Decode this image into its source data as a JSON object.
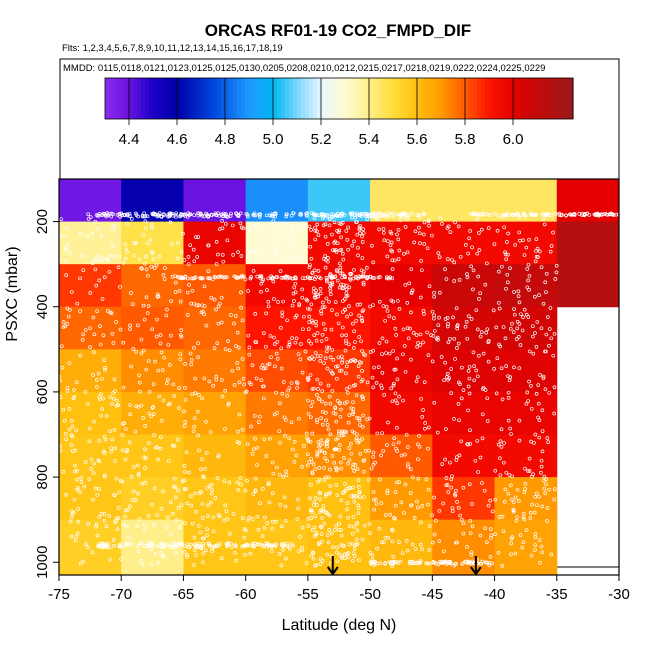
{
  "chart_data": {
    "type": "heatmap",
    "title": "ORCAS RF01-19 CO2_FMPD_DIF",
    "flights_text": "Flts: 1,2,3,4,5,6,7,8,9,10,11,12,13,14,15,16,17,18,19",
    "dates_text": "MMDD: 0115,0118,0121,0123,0125,0125,0130,0205,0208,0210,0212,0215,0217,0218,0219,0222,0224,0225,0229",
    "xlabel": "Latitude (deg N)",
    "ylabel": "PSXC (mbar)",
    "xlim": [
      -75,
      -30
    ],
    "ylim": [
      1030,
      100
    ],
    "x_ticks": [
      -75,
      -70,
      -65,
      -60,
      -55,
      -50,
      -45,
      -40,
      -35,
      -30
    ],
    "y_ticks": [
      200,
      400,
      600,
      800,
      1000
    ],
    "colorbar": {
      "min": 4.3,
      "max": 6.25,
      "ticks": [
        4.4,
        4.6,
        4.8,
        5.0,
        5.2,
        5.4,
        5.6,
        5.8,
        6.0
      ],
      "stops": [
        {
          "v": 4.3,
          "c": "#8b2cf0"
        },
        {
          "v": 4.4,
          "c": "#6a12e0"
        },
        {
          "v": 4.5,
          "c": "#1a00c8"
        },
        {
          "v": 4.6,
          "c": "#0000a8"
        },
        {
          "v": 4.75,
          "c": "#0044dd"
        },
        {
          "v": 4.9,
          "c": "#1e9bff"
        },
        {
          "v": 5.0,
          "c": "#00b5f2"
        },
        {
          "v": 5.1,
          "c": "#7ad8ff"
        },
        {
          "v": 5.2,
          "c": "#e8f6ff"
        },
        {
          "v": 5.3,
          "c": "#fffbd2"
        },
        {
          "v": 5.4,
          "c": "#ffef8a"
        },
        {
          "v": 5.5,
          "c": "#ffdd3a"
        },
        {
          "v": 5.6,
          "c": "#ffc010"
        },
        {
          "v": 5.7,
          "c": "#ff9a00"
        },
        {
          "v": 5.8,
          "c": "#ff5a00"
        },
        {
          "v": 5.9,
          "c": "#ff1400"
        },
        {
          "v": 6.0,
          "c": "#e40000"
        },
        {
          "v": 6.1,
          "c": "#c40a0a"
        },
        {
          "v": 6.25,
          "c": "#9a1a1a"
        }
      ]
    },
    "lat_bins": [
      -75,
      -70,
      -65,
      -60,
      -55,
      -50,
      -45,
      -40,
      -35,
      -30
    ],
    "pres_bins": [
      100,
      200,
      300,
      400,
      500,
      600,
      700,
      800,
      900,
      1000,
      1100
    ],
    "grid_values": [
      [
        4.38,
        4.58,
        4.4,
        4.88,
        5.05,
        5.45,
        5.45,
        5.45,
        6.0
      ],
      [
        5.38,
        5.48,
        5.98,
        5.3,
        5.95,
        5.95,
        5.95,
        5.95,
        6.15
      ],
      [
        5.85,
        5.78,
        5.8,
        5.95,
        5.95,
        6.0,
        6.08,
        6.1,
        6.15
      ],
      [
        5.78,
        5.8,
        5.78,
        5.9,
        5.9,
        5.95,
        6.05,
        6.05,
        null
      ],
      [
        5.65,
        5.72,
        5.75,
        5.82,
        5.85,
        5.98,
        6.02,
        6.02,
        null
      ],
      [
        5.6,
        5.65,
        5.68,
        5.75,
        5.78,
        5.95,
        5.98,
        5.98,
        null
      ],
      [
        5.58,
        5.58,
        5.62,
        5.68,
        5.72,
        5.8,
        5.95,
        5.95,
        null
      ],
      [
        5.58,
        5.55,
        5.58,
        5.62,
        5.6,
        5.7,
        5.85,
        5.7,
        null
      ],
      [
        5.55,
        5.4,
        5.58,
        5.58,
        5.6,
        5.62,
        5.72,
        5.68,
        null
      ],
      [
        5.55,
        5.4,
        5.58,
        5.58,
        5.6,
        5.62,
        5.72,
        5.68,
        null
      ]
    ],
    "arrows_lat": [
      -53.0,
      -41.5
    ]
  }
}
